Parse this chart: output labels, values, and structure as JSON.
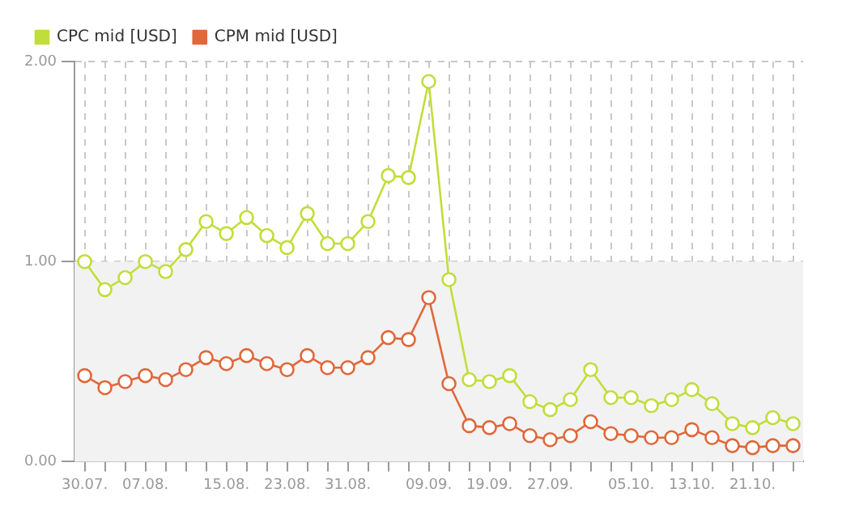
{
  "chart_data": {
    "type": "line",
    "categories": [
      "30.07.",
      null,
      null,
      "07.08.",
      null,
      null,
      null,
      "15.08.",
      null,
      null,
      "23.08.",
      null,
      null,
      "31.08.",
      null,
      null,
      null,
      "09.09.",
      null,
      null,
      "19.09.",
      null,
      null,
      "27.09.",
      null,
      null,
      null,
      "05.10.",
      null,
      null,
      "13.10.",
      null,
      null,
      "21.10.",
      null,
      null
    ],
    "series": [
      {
        "name": "CPC mid [USD]",
        "color": "#c0de3a",
        "values": [
          1.0,
          0.86,
          0.92,
          1.0,
          0.95,
          1.06,
          1.2,
          1.14,
          1.22,
          1.13,
          1.07,
          1.24,
          1.09,
          1.09,
          1.2,
          1.43,
          1.42,
          1.9,
          0.91,
          0.41,
          0.4,
          0.43,
          0.3,
          0.26,
          0.31,
          0.46,
          0.32,
          0.32,
          0.28,
          0.31,
          0.36,
          0.29,
          0.19,
          0.17,
          0.22,
          0.19
        ]
      },
      {
        "name": "CPM mid [USD]",
        "color": "#e0683a",
        "values": [
          0.43,
          0.37,
          0.4,
          0.43,
          0.41,
          0.46,
          0.52,
          0.49,
          0.53,
          0.49,
          0.46,
          0.53,
          0.47,
          0.47,
          0.52,
          0.62,
          0.61,
          0.82,
          0.39,
          0.18,
          0.17,
          0.19,
          0.13,
          0.11,
          0.13,
          0.2,
          0.14,
          0.13,
          0.12,
          0.12,
          0.16,
          0.12,
          0.08,
          0.07,
          0.08,
          0.08
        ]
      }
    ],
    "ylim": [
      0,
      2
    ],
    "yticks": [
      {
        "value": 0,
        "label": "0.00"
      },
      {
        "value": 1,
        "label": "1.00"
      },
      {
        "value": 2,
        "label": "2.00"
      }
    ],
    "bands": [
      {
        "axis": "y",
        "from": 0,
        "to": 1,
        "color": "#f2f2f2"
      }
    ],
    "grid": true,
    "legend": "top left",
    "marker": "circle",
    "line_style": "solid"
  }
}
